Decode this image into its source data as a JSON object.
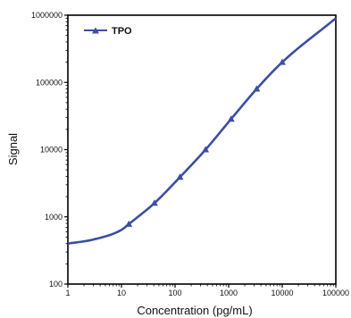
{
  "chart_data": {
    "type": "line",
    "title": "",
    "xlabel": "Concentration (pg/mL)",
    "ylabel": "Signal",
    "xscale": "log",
    "yscale": "log",
    "xlim": [
      1,
      100000
    ],
    "ylim": [
      100,
      1000000
    ],
    "xticks": [
      1,
      10,
      100,
      1000,
      10000,
      100000
    ],
    "xtick_labels": [
      "1",
      "10",
      "100",
      "1000",
      "10000",
      "100000"
    ],
    "yticks": [
      100,
      1000,
      10000,
      100000,
      1000000
    ],
    "ytick_labels": [
      "100",
      "1000",
      "10000",
      "100000",
      "1000000"
    ],
    "grid": false,
    "legend_position": "top-left",
    "series": [
      {
        "name": "TPO",
        "color": "#3a4fa3",
        "marker": "triangle",
        "points": [
          {
            "x": 13.7,
            "y": 780
          },
          {
            "x": 41.2,
            "y": 1600
          },
          {
            "x": 123.5,
            "y": 3900
          },
          {
            "x": 370.4,
            "y": 10000
          },
          {
            "x": 1111,
            "y": 28500
          },
          {
            "x": 3333,
            "y": 80000
          },
          {
            "x": 10000,
            "y": 200000
          }
        ],
        "curve": [
          {
            "x": 1,
            "y": 400
          },
          {
            "x": 3,
            "y": 460
          },
          {
            "x": 10,
            "y": 640
          },
          {
            "x": 100000,
            "y": 900000
          }
        ]
      }
    ]
  }
}
